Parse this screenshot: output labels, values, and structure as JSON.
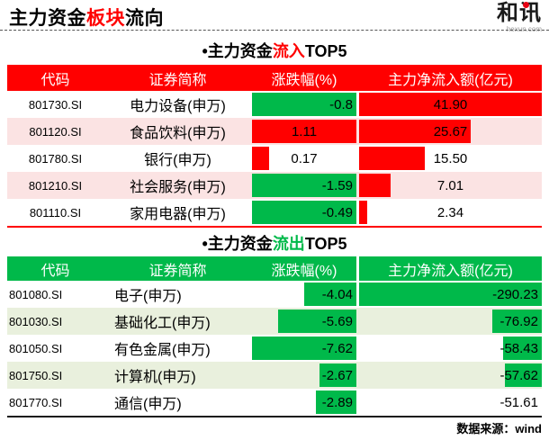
{
  "theme": {
    "up_red": "#ff0000",
    "down_green": "#00b94a",
    "stripe_pink": "#fbe3e3",
    "stripe_pale_green": "#e9f0dd",
    "logo_dot_red": "#e60012"
  },
  "banner": {
    "title": {
      "pre": "主力资金",
      "accent": "板块",
      "post": "流向"
    },
    "logo": {
      "text": "和讯",
      "domain": "hexun.com"
    }
  },
  "inflow": {
    "heading": {
      "pre": "•主力资金",
      "accent": "流入",
      "post": "TOP5"
    },
    "headers": [
      "代码",
      "证券简称",
      "涨跌幅(%)",
      "主力净流入额(亿元)"
    ],
    "rows": [
      {
        "code": "801730.SI",
        "name": "电力设备(申万)",
        "change": "-0.8",
        "change_align": "right",
        "change_bar": {
          "pct": 100,
          "color": "#00b94a",
          "side": "left"
        },
        "flow": "41.90",
        "flow_align": "center",
        "flow_bar": {
          "pct": 100,
          "color": "#ff0000",
          "side": "left"
        }
      },
      {
        "code": "801120.SI",
        "name": "食品饮料(申万)",
        "change": "1.11",
        "change_align": "center",
        "change_bar": {
          "pct": 100,
          "color": "#ff0000",
          "side": "left"
        },
        "flow": "25.67",
        "flow_align": "center",
        "flow_bar": {
          "pct": 61,
          "color": "#ff0000",
          "side": "left"
        }
      },
      {
        "code": "801780.SI",
        "name": "银行(申万)",
        "change": "0.17",
        "change_align": "center",
        "change_bar": {
          "pct": 16,
          "color": "#ff0000",
          "side": "left"
        },
        "flow": "15.50",
        "flow_align": "center",
        "flow_bar": {
          "pct": 36,
          "color": "#ff0000",
          "side": "left"
        }
      },
      {
        "code": "801210.SI",
        "name": "社会服务(申万)",
        "change": "-1.59",
        "change_align": "right",
        "change_bar": {
          "pct": 100,
          "color": "#00b94a",
          "side": "left"
        },
        "flow": "7.01",
        "flow_align": "center",
        "flow_bar": {
          "pct": 17,
          "color": "#ff0000",
          "side": "left"
        }
      },
      {
        "code": "801110.SI",
        "name": "家用电器(申万)",
        "change": "-0.49",
        "change_align": "right",
        "change_bar": {
          "pct": 100,
          "color": "#00b94a",
          "side": "left"
        },
        "flow": "2.34",
        "flow_align": "center",
        "flow_bar": {
          "pct": 4.5,
          "color": "#ff0000",
          "side": "left"
        }
      }
    ]
  },
  "outflow": {
    "heading": {
      "pre": "•主力资金",
      "accent": "流出",
      "post": "TOP5"
    },
    "headers": [
      "代码",
      "证券简称",
      "涨跌幅(%)",
      "主力净流入额(亿元)"
    ],
    "rows": [
      {
        "code": "801080.SI",
        "name": "电子(申万)",
        "change": "-4.04",
        "change_align": "right",
        "change_bar": {
          "pct": 50,
          "color": "#00b94a",
          "side": "right"
        },
        "flow": "-290.23",
        "flow_align": "right",
        "flow_bar": {
          "pct": 100,
          "color": "#00b94a",
          "side": "right"
        }
      },
      {
        "code": "801030.SI",
        "name": "基础化工(申万)",
        "change": "-5.69",
        "change_align": "right",
        "change_bar": {
          "pct": 75,
          "color": "#00b94a",
          "side": "right"
        },
        "flow": "-76.92",
        "flow_align": "right",
        "flow_bar": {
          "pct": 27,
          "color": "#00b94a",
          "side": "right"
        }
      },
      {
        "code": "801050.SI",
        "name": "有色金属(申万)",
        "change": "-7.62",
        "change_align": "right",
        "change_bar": {
          "pct": 100,
          "color": "#00b94a",
          "side": "right"
        },
        "flow": "-58.43",
        "flow_align": "right",
        "flow_bar": {
          "pct": 21,
          "color": "#00b94a",
          "side": "right"
        }
      },
      {
        "code": "801750.SI",
        "name": "计算机(申万)",
        "change": "-2.67",
        "change_align": "right",
        "change_bar": {
          "pct": 35,
          "color": "#00b94a",
          "side": "right"
        },
        "flow": "-57.62",
        "flow_align": "right",
        "flow_bar": {
          "pct": 20,
          "color": "#00b94a",
          "side": "right"
        }
      },
      {
        "code": "801770.SI",
        "name": "通信(申万)",
        "change": "-2.89",
        "change_align": "right",
        "change_bar": {
          "pct": 39,
          "color": "#00b94a",
          "side": "right"
        },
        "flow": "-51.61",
        "flow_align": "right",
        "flow_bar": {
          "pct": 0,
          "color": "#00b94a",
          "side": "right"
        }
      }
    ]
  },
  "footer": {
    "source": "数据来源：wind"
  },
  "chart_data": [
    {
      "type": "table",
      "title": "主力资金流入TOP5",
      "columns": [
        "代码",
        "证券简称",
        "涨跌幅(%)",
        "主力净流入额(亿元)"
      ],
      "rows": [
        [
          "801730.SI",
          "电力设备(申万)",
          -0.8,
          41.9
        ],
        [
          "801120.SI",
          "食品饮料(申万)",
          1.11,
          25.67
        ],
        [
          "801780.SI",
          "银行(申万)",
          0.17,
          15.5
        ],
        [
          "801210.SI",
          "社会服务(申万)",
          -1.59,
          7.01
        ],
        [
          "801110.SI",
          "家用电器(申万)",
          -0.49,
          2.34
        ]
      ],
      "notes": "红色数据条=流入/上涨, 绿色=下跌; 数据条长度与数值成比例"
    },
    {
      "type": "table",
      "title": "主力资金流出TOP5",
      "columns": [
        "代码",
        "证券简称",
        "涨跌幅(%)",
        "主力净流入额(亿元)"
      ],
      "rows": [
        [
          "801080.SI",
          "电子(申万)",
          -4.04,
          -290.23
        ],
        [
          "801030.SI",
          "基础化工(申万)",
          -5.69,
          -76.92
        ],
        [
          "801050.SI",
          "有色金属(申万)",
          -7.62,
          -58.43
        ],
        [
          "801750.SI",
          "计算机(申万)",
          -2.67,
          -57.62
        ],
        [
          "801770.SI",
          "通信(申万)",
          -2.89,
          -51.61
        ]
      ],
      "notes": "绿色数据条右对齐, 长度与绝对值成比例"
    }
  ]
}
